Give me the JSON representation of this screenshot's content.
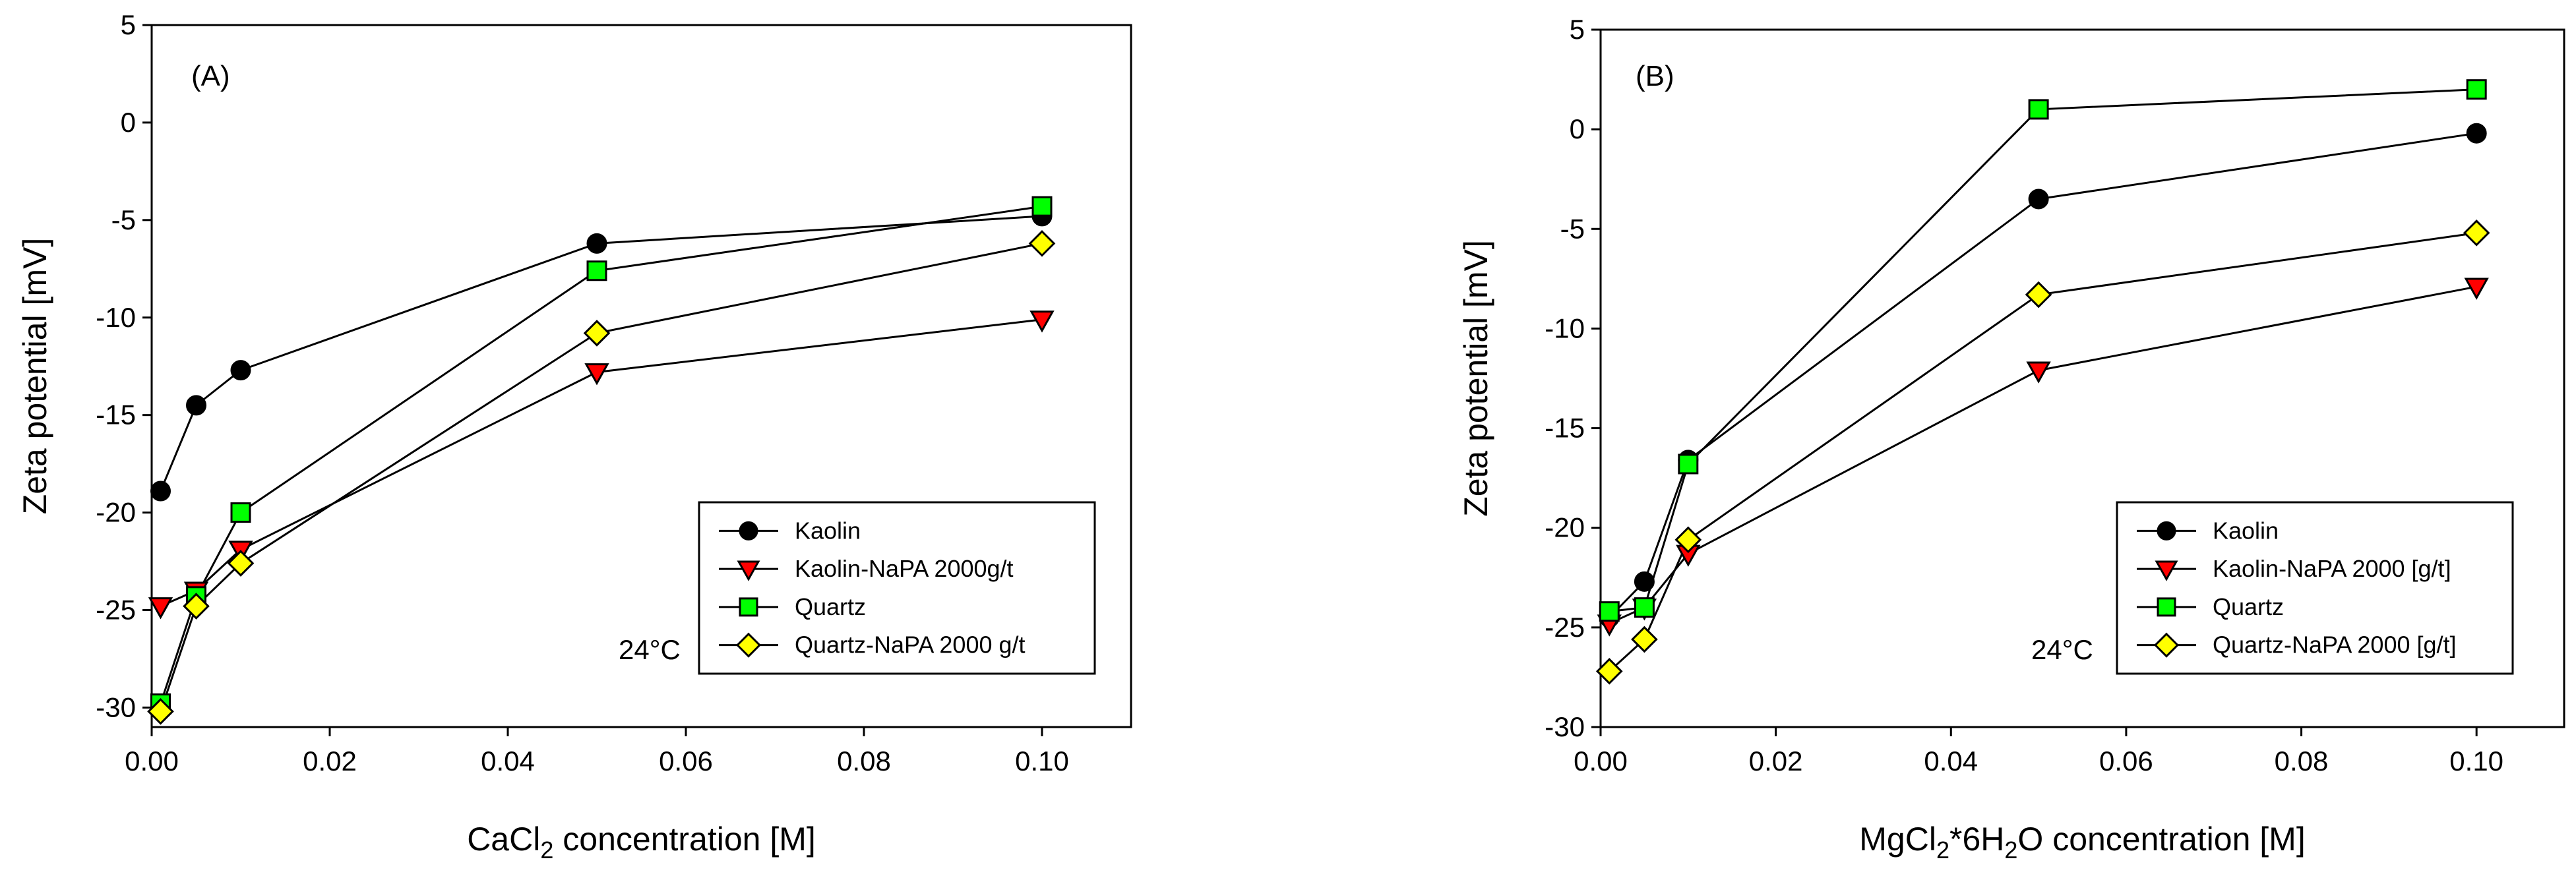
{
  "chart_data": [
    {
      "type": "line",
      "panel_label": "(A)",
      "annotation": "24°C",
      "xlabel": {
        "main": "CaCl",
        "sub": "2",
        "rest": " concentration [M]"
      },
      "ylabel": "Zeta potential [mV]",
      "xlim": [
        0.0,
        0.11
      ],
      "ylim": [
        -31,
        5
      ],
      "xticks": [
        0.0,
        0.02,
        0.04,
        0.06,
        0.08,
        0.1
      ],
      "xtick_labels": [
        "0.00",
        "0.02",
        "0.04",
        "0.06",
        "0.08",
        "0.10"
      ],
      "yticks": [
        5,
        0,
        -5,
        -10,
        -15,
        -20,
        -25,
        -30
      ],
      "ytick_labels": [
        "5",
        "0",
        "-5",
        "-10",
        "-15",
        "-20",
        "-25",
        "-30"
      ],
      "legend_position": "lower-right",
      "series": [
        {
          "name": "Kaolin",
          "marker": "circle",
          "color": "#000000",
          "x": [
            0.001,
            0.005,
            0.01,
            0.05,
            0.1
          ],
          "y": [
            -18.9,
            -14.5,
            -12.7,
            -6.2,
            -4.8
          ]
        },
        {
          "name": "Kaolin-NaPA 2000g/t",
          "marker": "triangle-down",
          "color": "#ff0000",
          "x": [
            0.001,
            0.005,
            0.01,
            0.05,
            0.1
          ],
          "y": [
            -24.8,
            -24.0,
            -21.9,
            -12.8,
            -10.1
          ]
        },
        {
          "name": "Quartz",
          "marker": "square",
          "color": "#00ff00",
          "x": [
            0.001,
            0.005,
            0.01,
            0.05,
            0.1
          ],
          "y": [
            -29.8,
            -24.3,
            -20.0,
            -7.6,
            -4.3
          ]
        },
        {
          "name": "Quartz-NaPA 2000 g/t",
          "marker": "diamond",
          "color": "#ffff00",
          "x": [
            0.001,
            0.005,
            0.01,
            0.05,
            0.1
          ],
          "y": [
            -30.2,
            -24.8,
            -22.6,
            -10.8,
            -6.2
          ]
        }
      ]
    },
    {
      "type": "line",
      "panel_label": "(B)",
      "annotation": "24°C",
      "xlabel": {
        "main": "MgCl",
        "sub": "2",
        "mid": "*6H",
        "sub2": "2",
        "rest": "O concentration [M]"
      },
      "ylabel": "Zeta potential [mV]",
      "xlim": [
        0.0,
        0.11
      ],
      "ylim": [
        -30,
        5
      ],
      "xticks": [
        0.0,
        0.02,
        0.04,
        0.06,
        0.08,
        0.1
      ],
      "xtick_labels": [
        "0.00",
        "0.02",
        "0.04",
        "0.06",
        "0.08",
        "0.10"
      ],
      "yticks": [
        5,
        0,
        -5,
        -10,
        -15,
        -20,
        -25,
        -30
      ],
      "ytick_labels": [
        "5",
        "0",
        "-5",
        "-10",
        "-15",
        "-20",
        "-25",
        "-30"
      ],
      "legend_position": "lower-right",
      "series": [
        {
          "name": "Kaolin",
          "marker": "circle",
          "color": "#000000",
          "x": [
            0.001,
            0.005,
            0.01,
            0.05,
            0.1
          ],
          "y": [
            -24.5,
            -22.7,
            -16.6,
            -3.5,
            -0.2
          ]
        },
        {
          "name": "Kaolin-NaPA 2000 [g/t]",
          "marker": "triangle-down",
          "color": "#ff0000",
          "x": [
            0.001,
            0.005,
            0.01,
            0.05,
            0.1
          ],
          "y": [
            -24.8,
            -24.0,
            -21.3,
            -12.1,
            -7.9
          ]
        },
        {
          "name": "Quartz",
          "marker": "square",
          "color": "#00ff00",
          "x": [
            0.001,
            0.005,
            0.01,
            0.05,
            0.1
          ],
          "y": [
            -24.2,
            -24.0,
            -16.8,
            1.0,
            2.0
          ]
        },
        {
          "name": "Quartz-NaPA 2000 [g/t]",
          "marker": "diamond",
          "color": "#ffff00",
          "x": [
            0.001,
            0.005,
            0.01,
            0.05,
            0.1
          ],
          "y": [
            -27.2,
            -25.6,
            -20.6,
            -8.3,
            -5.2
          ]
        }
      ]
    }
  ]
}
